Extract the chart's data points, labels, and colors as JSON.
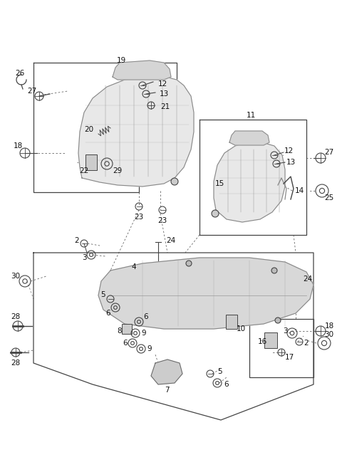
{
  "bg_color": "#ffffff",
  "fig_width": 4.8,
  "fig_height": 6.56,
  "dpi": 100,
  "line_color": "#444444",
  "gray_fill": "#e0e0e0",
  "dark_fill": "#cccccc"
}
